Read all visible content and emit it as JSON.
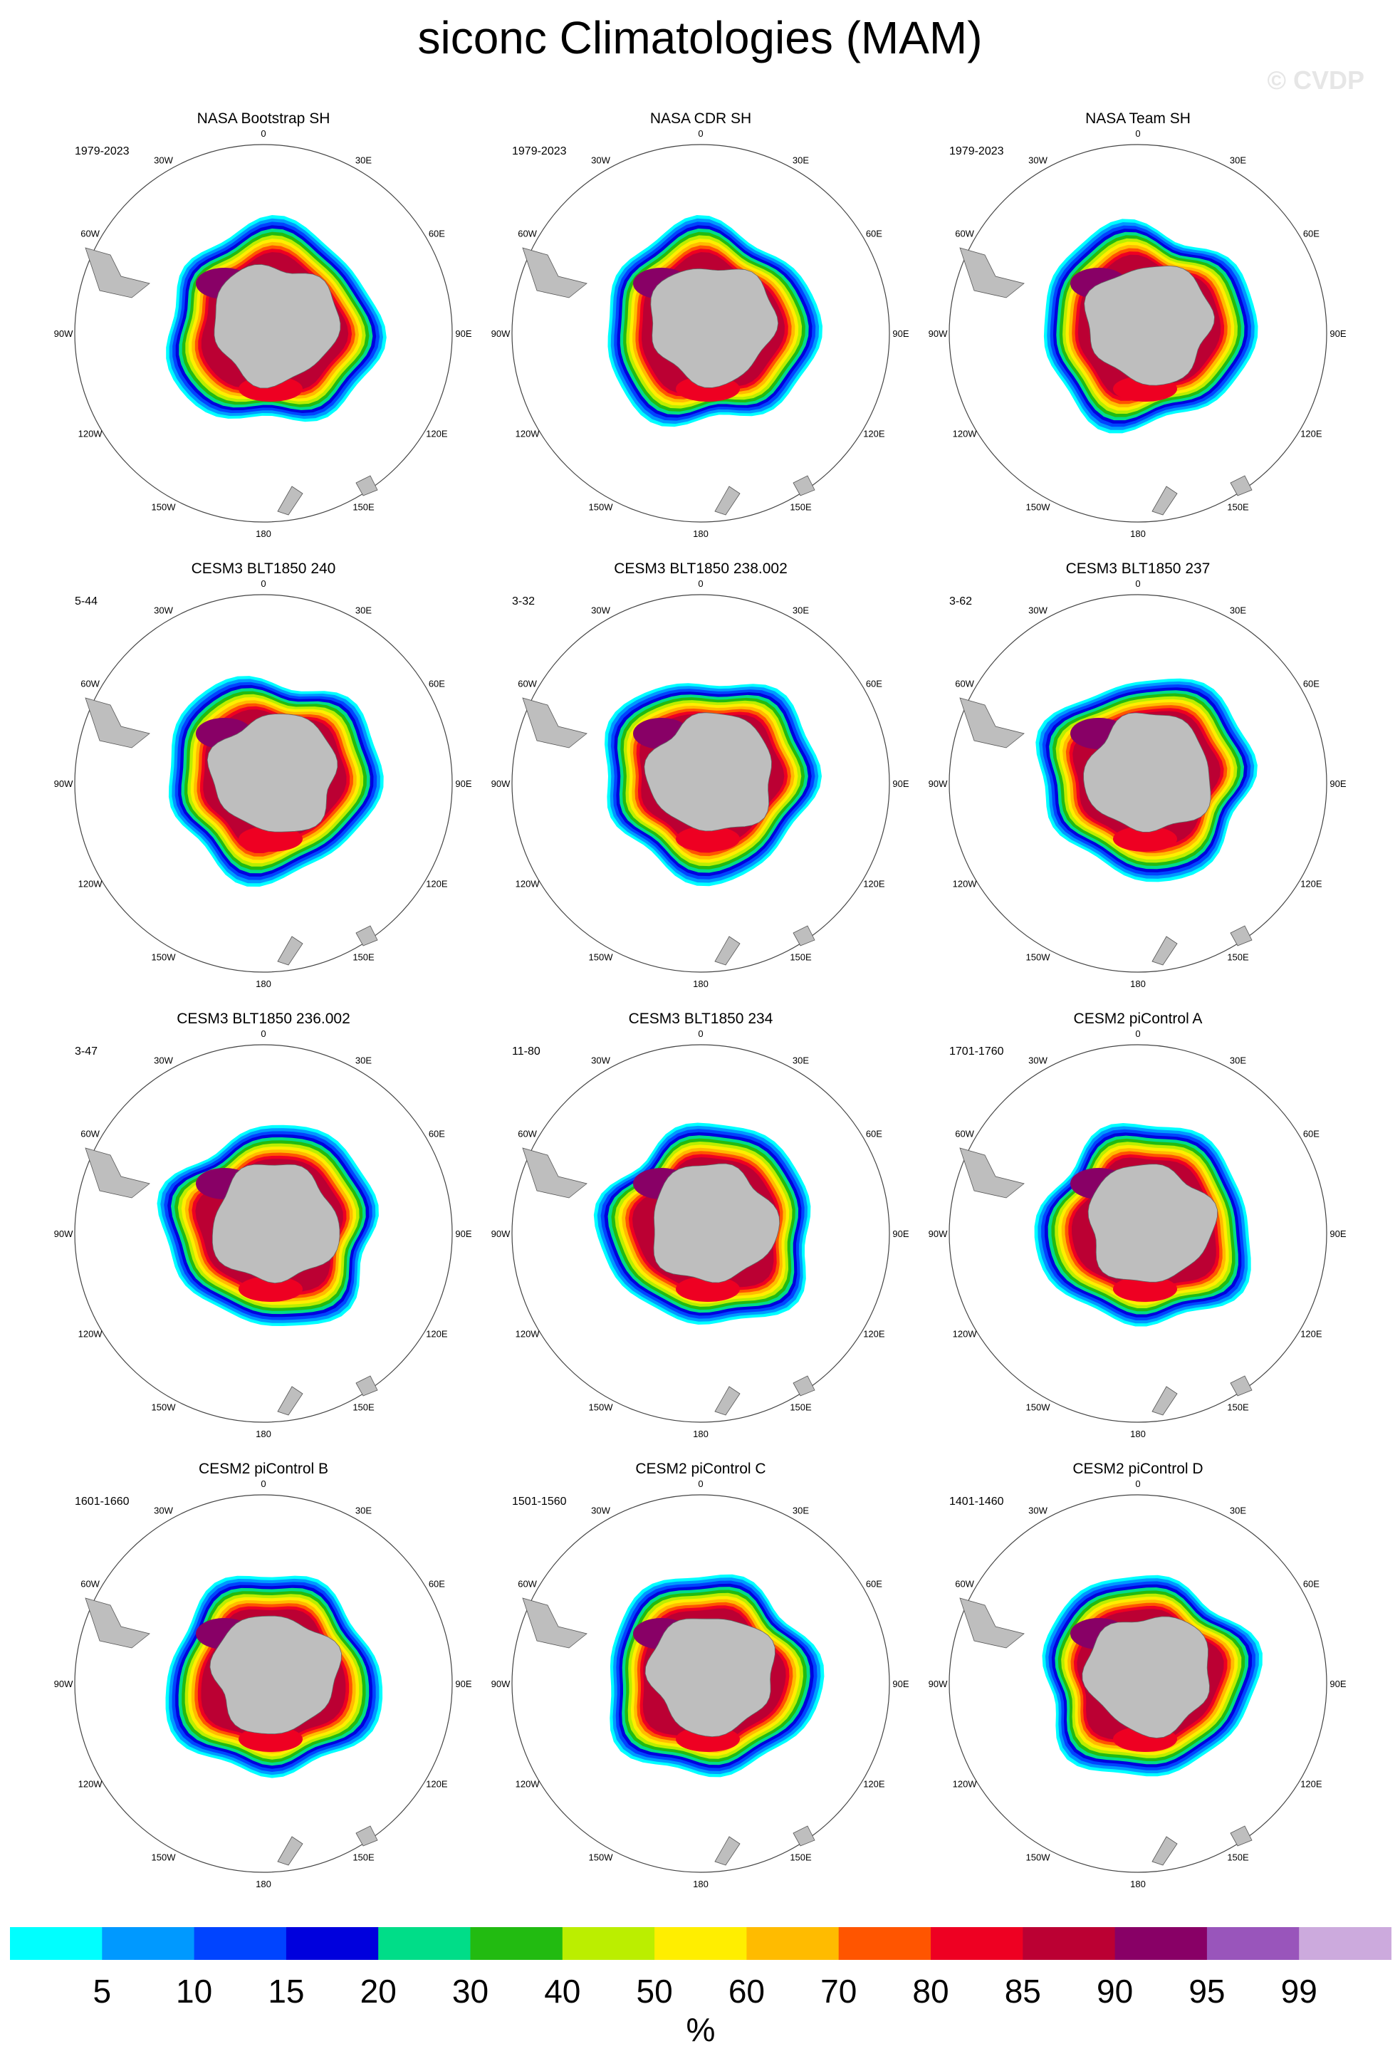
{
  "figure": {
    "title": "siconc Climatologies (MAM)",
    "watermark": "© CVDP"
  },
  "chart_data": {
    "type": "heatmap",
    "projection": "south-polar-stereographic",
    "panels": [
      {
        "title": "NASA Bootstrap SH",
        "period": "1979-2023"
      },
      {
        "title": "NASA CDR SH",
        "period": "1979-2023"
      },
      {
        "title": "NASA Team SH",
        "period": "1979-2023"
      },
      {
        "title": "CESM3 BLT1850 240",
        "period": "5-44"
      },
      {
        "title": "CESM3 BLT1850 238.002",
        "period": "3-32"
      },
      {
        "title": "CESM3 BLT1850 237",
        "period": "3-62"
      },
      {
        "title": "CESM3 BLT1850 236.002",
        "period": "3-47"
      },
      {
        "title": "CESM3 BLT1850 234",
        "period": "11-80"
      },
      {
        "title": "CESM2 piControl A",
        "period": "1701-1760"
      },
      {
        "title": "CESM2 piControl B",
        "period": "1601-1660"
      },
      {
        "title": "CESM2 piControl C",
        "period": "1501-1560"
      },
      {
        "title": "CESM2 piControl D",
        "period": "1401-1460"
      }
    ],
    "longitude_labels": [
      "0",
      "30E",
      "60E",
      "90E",
      "120E",
      "150E",
      "180",
      "150W",
      "120W",
      "90W",
      "60W",
      "30W"
    ],
    "colorbar": {
      "unit": "%",
      "levels": [
        5,
        10,
        15,
        20,
        30,
        40,
        50,
        60,
        70,
        80,
        85,
        90,
        95,
        99
      ],
      "colors": [
        "#00ffff",
        "#0099ff",
        "#0044ff",
        "#0000dd",
        "#00dd88",
        "#22bb11",
        "#bbee00",
        "#ffee00",
        "#ffbb00",
        "#ff5500",
        "#ee0022",
        "#bb0033",
        "#880066",
        "#9955bb",
        "#ccaadd"
      ]
    },
    "land_color": "#bebebe"
  }
}
